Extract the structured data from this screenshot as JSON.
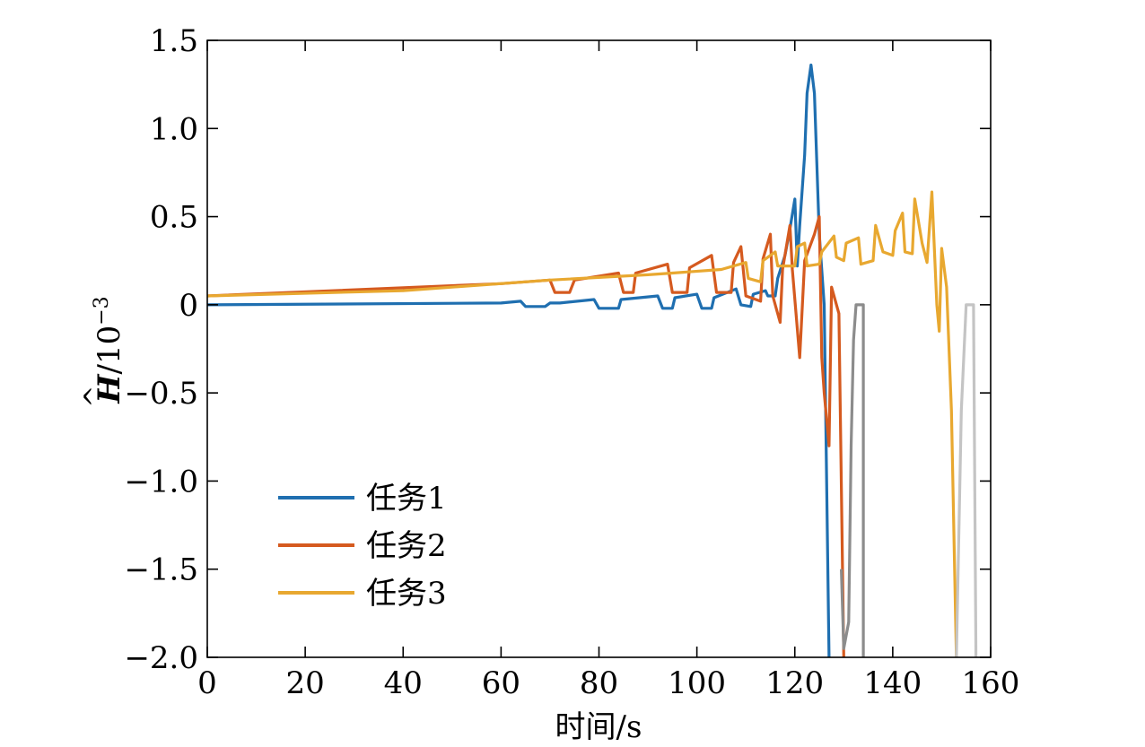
{
  "chart_data": {
    "type": "line",
    "title": "",
    "xlabel": "时间/s",
    "ylabel": {
      "symbol": "H",
      "accent": "^",
      "unit": "/10",
      "exponent": "−3"
    },
    "xlim": [
      0,
      160
    ],
    "ylim": [
      -2.0,
      1.5
    ],
    "xticks": [
      0,
      20,
      40,
      60,
      80,
      100,
      120,
      140,
      160
    ],
    "xtick_labels": [
      "0",
      "20",
      "40",
      "60",
      "80",
      "100",
      "120",
      "140",
      "160"
    ],
    "yticks": [
      1.5,
      1.0,
      0.5,
      0,
      -0.5,
      -1.0,
      -1.5,
      -2.0
    ],
    "ytick_labels": [
      "1.5",
      "1.0",
      "0.5",
      "0",
      "−0.5",
      "−1.0",
      "−1.5",
      "−2.0"
    ],
    "grid": false,
    "legend_position": "bottom-left",
    "series": [
      {
        "name": "任务1",
        "color": "#1f6fb0",
        "points": [
          [
            0,
            0
          ],
          [
            60,
            0.01
          ],
          [
            64,
            0.02
          ],
          [
            65,
            -0.01
          ],
          [
            69,
            -0.01
          ],
          [
            70,
            0.01
          ],
          [
            72,
            0.01
          ],
          [
            79,
            0.03
          ],
          [
            80,
            -0.02
          ],
          [
            84,
            -0.02
          ],
          [
            84.5,
            0.03
          ],
          [
            92,
            0.05
          ],
          [
            93,
            -0.02
          ],
          [
            95,
            -0.02
          ],
          [
            95.5,
            0.04
          ],
          [
            100,
            0.06
          ],
          [
            101,
            -0.02
          ],
          [
            103,
            -0.02
          ],
          [
            103.5,
            0.04
          ],
          [
            108,
            0.09
          ],
          [
            109,
            0.0
          ],
          [
            111,
            -0.01
          ],
          [
            111.5,
            0.06
          ],
          [
            114,
            0.08
          ],
          [
            114.5,
            0.05
          ],
          [
            116,
            0.05
          ],
          [
            116.5,
            0.15
          ],
          [
            118,
            0.28
          ],
          [
            119,
            0.43
          ],
          [
            120,
            0.6
          ],
          [
            120.5,
            0.22
          ],
          [
            121,
            0.45
          ],
          [
            122,
            0.85
          ],
          [
            122.5,
            1.2
          ],
          [
            123.3,
            1.36
          ],
          [
            124,
            1.2
          ],
          [
            125,
            0.4
          ],
          [
            126,
            0.0
          ],
          [
            126.5,
            -1.0
          ],
          [
            127,
            -2.0
          ]
        ]
      },
      {
        "name": "任务2",
        "color": "#d55a1f",
        "points": [
          [
            0,
            0.05
          ],
          [
            60,
            0.12
          ],
          [
            70,
            0.14
          ],
          [
            71,
            0.07
          ],
          [
            74,
            0.07
          ],
          [
            75,
            0.14
          ],
          [
            84,
            0.18
          ],
          [
            85,
            0.07
          ],
          [
            87,
            0.07
          ],
          [
            87.5,
            0.18
          ],
          [
            94,
            0.23
          ],
          [
            95,
            0.07
          ],
          [
            98,
            0.07
          ],
          [
            98.5,
            0.21
          ],
          [
            103,
            0.28
          ],
          [
            104,
            0.07
          ],
          [
            107,
            0.07
          ],
          [
            107.5,
            0.24
          ],
          [
            109,
            0.33
          ],
          [
            110,
            0.05
          ],
          [
            113,
            0.02
          ],
          [
            113.5,
            0.26
          ],
          [
            115,
            0.4
          ],
          [
            115.5,
            0.05
          ],
          [
            117,
            -0.1
          ],
          [
            117.5,
            0.2
          ],
          [
            119,
            0.45
          ],
          [
            119.5,
            0.2
          ],
          [
            121,
            -0.3
          ],
          [
            122,
            0.25
          ],
          [
            124,
            0.4
          ],
          [
            125,
            0.5
          ],
          [
            125.5,
            -0.3
          ],
          [
            126,
            -0.5
          ],
          [
            127,
            -0.8
          ],
          [
            127.5,
            0.1
          ],
          [
            129,
            -0.05
          ],
          [
            130,
            -2.0
          ]
        ]
      },
      {
        "name": "任务3",
        "color": "#e8a830",
        "points": [
          [
            0,
            0.05
          ],
          [
            40,
            0.08
          ],
          [
            70,
            0.14
          ],
          [
            90,
            0.17
          ],
          [
            95,
            0.18
          ],
          [
            105,
            0.2
          ],
          [
            110,
            0.24
          ],
          [
            110.5,
            0.15
          ],
          [
            113,
            0.13
          ],
          [
            113.5,
            0.25
          ],
          [
            116,
            0.3
          ],
          [
            116.5,
            0.22
          ],
          [
            120,
            0.22
          ],
          [
            120.5,
            0.33
          ],
          [
            122,
            0.35
          ],
          [
            122.5,
            0.22
          ],
          [
            125,
            0.23
          ],
          [
            125.5,
            0.3
          ],
          [
            128,
            0.39
          ],
          [
            128.5,
            0.27
          ],
          [
            130,
            0.25
          ],
          [
            130.5,
            0.35
          ],
          [
            133,
            0.38
          ],
          [
            133.5,
            0.23
          ],
          [
            136,
            0.25
          ],
          [
            136.5,
            0.45
          ],
          [
            138,
            0.3
          ],
          [
            140,
            0.28
          ],
          [
            140.5,
            0.42
          ],
          [
            142,
            0.52
          ],
          [
            142.5,
            0.3
          ],
          [
            144,
            0.29
          ],
          [
            144.5,
            0.6
          ],
          [
            146,
            0.35
          ],
          [
            147,
            0.24
          ],
          [
            148,
            0.64
          ],
          [
            149,
            0.0
          ],
          [
            149.5,
            -0.15
          ],
          [
            150,
            0.32
          ],
          [
            151,
            0.1
          ],
          [
            152,
            -0.6
          ],
          [
            153,
            -2.0
          ]
        ]
      },
      {
        "name": "",
        "color": "#8c8c8c",
        "points": [
          [
            129.5,
            -1.5
          ],
          [
            130,
            -1.95
          ],
          [
            131,
            -1.8
          ],
          [
            131.5,
            -0.8
          ],
          [
            132,
            -0.2
          ],
          [
            132.5,
            0.0
          ],
          [
            134,
            0.0
          ],
          [
            134,
            -2.0
          ]
        ]
      },
      {
        "name": "",
        "color": "#c4c4c4",
        "points": [
          [
            153,
            -2.0
          ],
          [
            154,
            -0.6
          ],
          [
            155,
            0.0
          ],
          [
            156.5,
            0.0
          ],
          [
            157,
            -2.0
          ]
        ]
      }
    ]
  }
}
